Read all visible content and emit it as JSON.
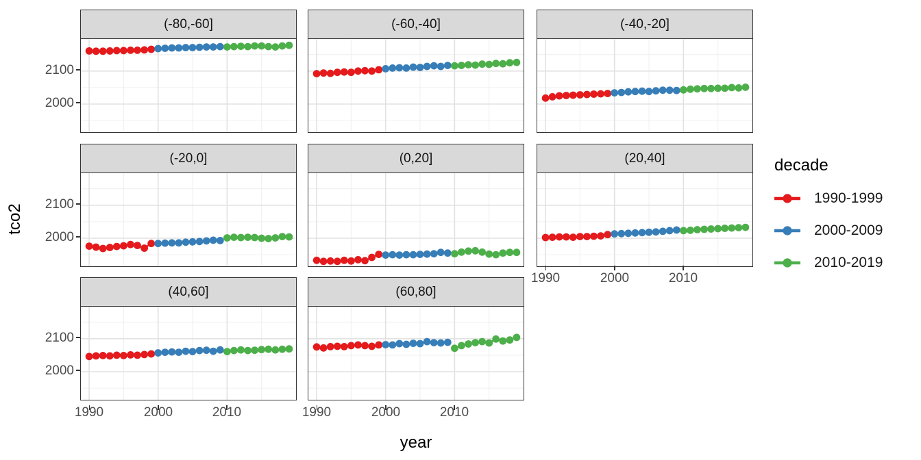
{
  "chart_data": {
    "type": "scatter",
    "title": "",
    "xlabel": "year",
    "ylabel": "tco2",
    "legend_title": "decade",
    "legend_position": "right",
    "grid": true,
    "x_tick_labels": [
      "1990",
      "2000",
      "2010"
    ],
    "y_tick_labels": [
      "2100",
      "2000"
    ],
    "x_major_ticks": [
      1990,
      2000,
      2010
    ],
    "x_minor_ticks": [
      1995,
      2005,
      2015
    ],
    "y_major_ticks": [
      2100,
      2000
    ],
    "y_minor_ticks": [
      1950,
      2050,
      2150
    ],
    "xlim": [
      1988.8,
      2020.0
    ],
    "ylim": [
      1915,
      2197
    ],
    "decades": [
      {
        "label": "1990-1999",
        "start_year": 1990,
        "color": "#e41a1c"
      },
      {
        "label": "2000-2009",
        "start_year": 2000,
        "color": "#377eb8"
      },
      {
        "label": "2010-2019",
        "start_year": 2010,
        "color": "#4daf4a"
      }
    ],
    "facets": [
      {
        "label": "(-80,-60]",
        "series": [
          [
            2161,
            2160,
            2160,
            2161,
            2162,
            2162,
            2163,
            2163,
            2164,
            2166
          ],
          [
            2168,
            2169,
            2170,
            2170,
            2171,
            2171,
            2172,
            2173,
            2173,
            2174
          ],
          [
            2173,
            2174,
            2175,
            2174,
            2176,
            2176,
            2174,
            2173,
            2176,
            2178
          ]
        ]
      },
      {
        "label": "(-60,-40]",
        "series": [
          [
            2092,
            2094,
            2093,
            2096,
            2097,
            2096,
            2100,
            2101,
            2100,
            2104
          ],
          [
            2107,
            2109,
            2110,
            2109,
            2112,
            2111,
            2114,
            2116,
            2114,
            2117
          ],
          [
            2116,
            2117,
            2119,
            2118,
            2121,
            2120,
            2123,
            2122,
            2125,
            2126
          ]
        ]
      },
      {
        "label": "(-40,-20]",
        "series": [
          [
            2018,
            2022,
            2025,
            2026,
            2027,
            2028,
            2029,
            2030,
            2031,
            2032
          ],
          [
            2034,
            2035,
            2037,
            2038,
            2039,
            2038,
            2040,
            2042,
            2042,
            2041
          ],
          [
            2043,
            2045,
            2046,
            2047,
            2047,
            2048,
            2048,
            2050,
            2049,
            2051
          ]
        ]
      },
      {
        "label": "(-20,0]",
        "series": [
          [
            1976,
            1973,
            1969,
            1972,
            1975,
            1977,
            1981,
            1978,
            1970,
            1984
          ],
          [
            1984,
            1985,
            1986,
            1986,
            1988,
            1989,
            1990,
            1992,
            1994,
            1993
          ],
          [
            2001,
            2003,
            2002,
            2003,
            2002,
            2000,
            1999,
            2001,
            2005,
            2004
          ]
        ]
      },
      {
        "label": "(0,20]",
        "series": [
          [
            1933,
            1930,
            1931,
            1930,
            1933,
            1931,
            1935,
            1932,
            1942,
            1951
          ],
          [
            1949,
            1950,
            1949,
            1950,
            1950,
            1951,
            1952,
            1953,
            1957,
            1955
          ],
          [
            1953,
            1958,
            1961,
            1962,
            1958,
            1952,
            1950,
            1955,
            1957,
            1957
          ]
        ]
      },
      {
        "label": "(20,40]",
        "series": [
          [
            2002,
            2003,
            2004,
            2004,
            2003,
            2005,
            2005,
            2006,
            2007,
            2011
          ],
          [
            2013,
            2014,
            2015,
            2016,
            2017,
            2018,
            2019,
            2021,
            2023,
            2025
          ],
          [
            2023,
            2024,
            2026,
            2027,
            2028,
            2029,
            2030,
            2031,
            2032,
            2033
          ]
        ]
      },
      {
        "label": "(40,60]",
        "series": [
          [
            2046,
            2048,
            2049,
            2048,
            2050,
            2049,
            2051,
            2050,
            2052,
            2054
          ],
          [
            2057,
            2059,
            2060,
            2059,
            2062,
            2061,
            2064,
            2065,
            2062,
            2066
          ],
          [
            2061,
            2064,
            2066,
            2064,
            2065,
            2067,
            2068,
            2066,
            2068,
            2069
          ]
        ]
      },
      {
        "label": "(60,80]",
        "series": [
          [
            2075,
            2072,
            2076,
            2077,
            2076,
            2079,
            2081,
            2079,
            2077,
            2081
          ],
          [
            2082,
            2081,
            2085,
            2083,
            2086,
            2085,
            2091,
            2088,
            2087,
            2089
          ],
          [
            2071,
            2079,
            2084,
            2088,
            2091,
            2087,
            2099,
            2093,
            2096,
            2104
          ]
        ]
      }
    ]
  }
}
